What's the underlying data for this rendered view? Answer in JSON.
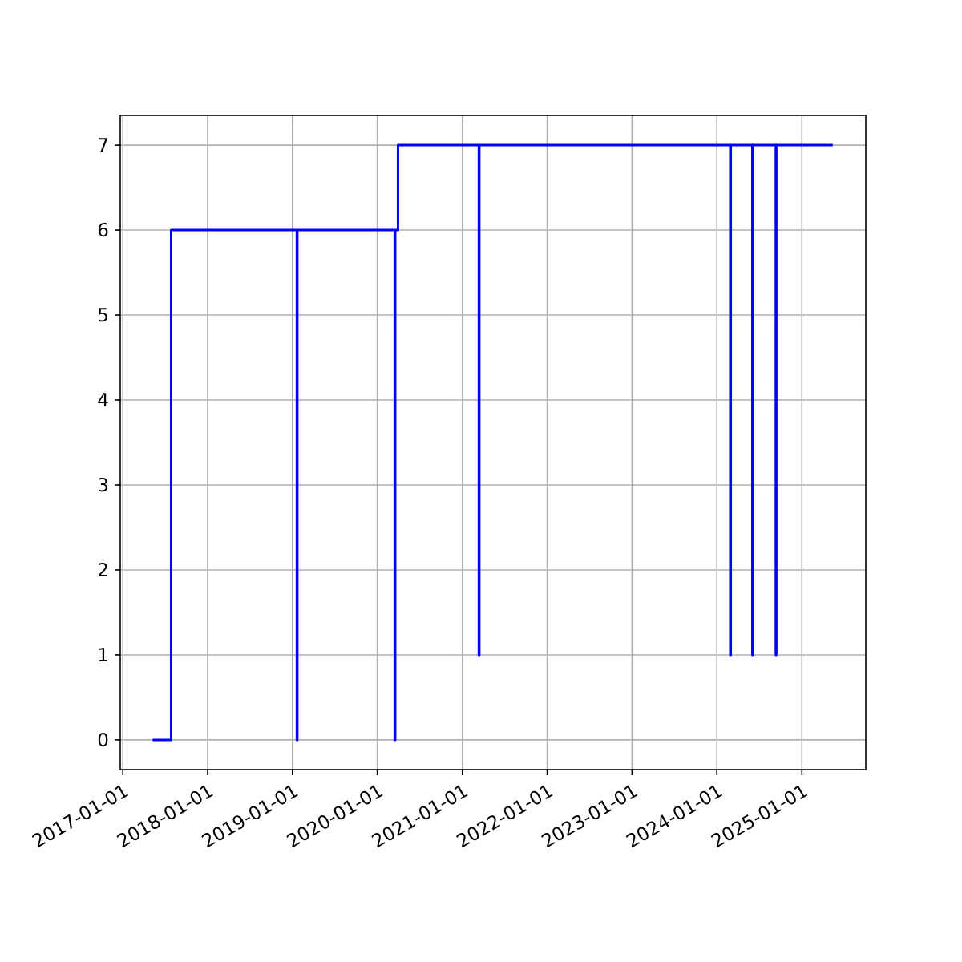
{
  "chart_data": {
    "type": "step",
    "x": [
      "2017-05-09",
      "2017-07-28",
      "2019-01-20",
      "2019-01-22",
      "2020-03-16",
      "2020-03-18",
      "2020-03-30",
      "2021-03-13",
      "2021-03-15",
      "2024-02-28",
      "2024-03-01",
      "2024-06-02",
      "2024-06-04",
      "2024-09-11",
      "2024-09-13",
      "2025-05-14"
    ],
    "series": [
      {
        "color": "#0000ff",
        "values": [
          0,
          6,
          0,
          6,
          0,
          6,
          7,
          1,
          7,
          1,
          7,
          1,
          7,
          1,
          7,
          7
        ]
      }
    ],
    "xlim": [
      "2016-12-21",
      "2025-10-03"
    ],
    "xticks": [
      "2017-01-01",
      "2018-01-01",
      "2019-01-01",
      "2020-01-01",
      "2021-01-01",
      "2022-01-01",
      "2023-01-01",
      "2024-01-01",
      "2025-01-01"
    ],
    "ylim": [
      -0.35,
      7.35
    ],
    "yticks": [
      0,
      1,
      2,
      3,
      4,
      5,
      6,
      7
    ],
    "grid": true
  }
}
